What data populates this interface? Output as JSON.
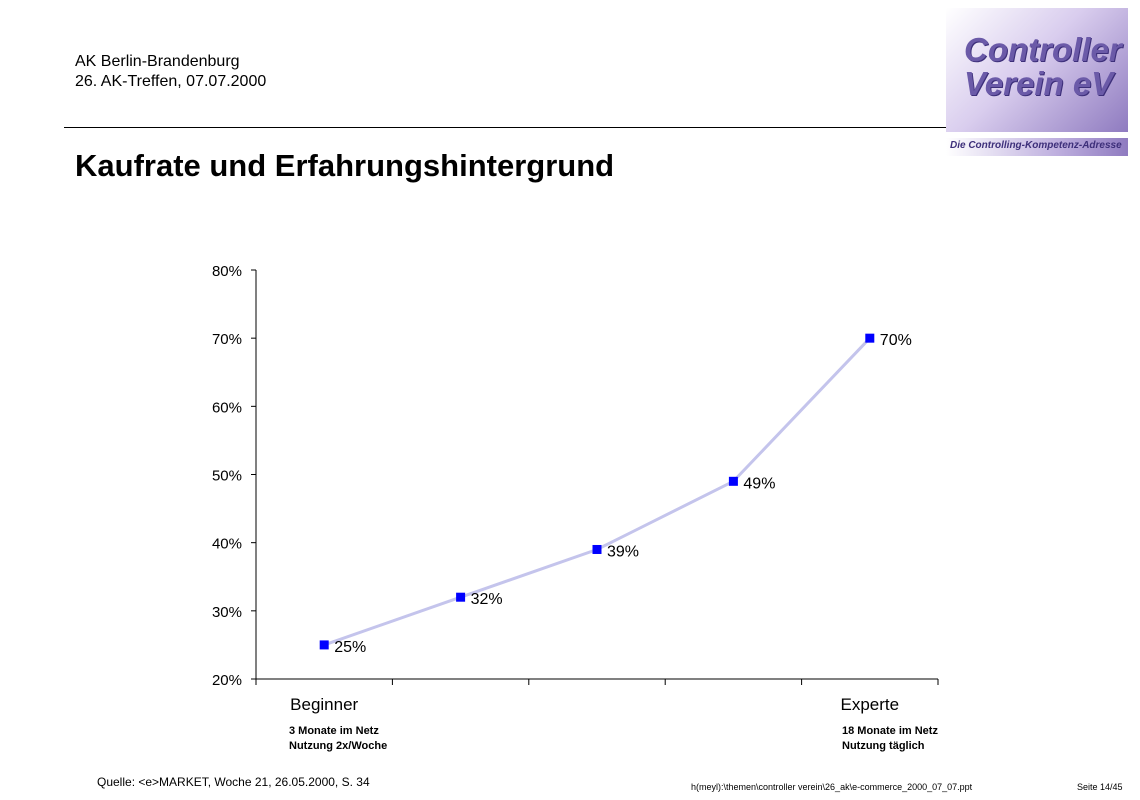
{
  "header": {
    "line1": "AK Berlin-Brandenburg",
    "line2": "26. AK-Treffen, 07.07.2000"
  },
  "title": "Kaufrate und Erfahrungshintergrund",
  "logo": {
    "line1": "Controller",
    "line2": "Verein eV",
    "tagline": "Die Controlling-Kompetenz-Adresse",
    "color": "#6b5aa8"
  },
  "chart_data": {
    "type": "line",
    "title": "",
    "xlabel": "",
    "ylabel": "",
    "categories": [
      "Beginner",
      "",
      "",
      "",
      "Experte"
    ],
    "series": [
      {
        "values": [
          25,
          32,
          39,
          49,
          70
        ],
        "labels": [
          "25%",
          "32%",
          "39%",
          "49%",
          "70%"
        ]
      }
    ],
    "ylim": [
      20,
      80
    ],
    "yticks": [
      "20%",
      "30%",
      "40%",
      "50%",
      "60%",
      "70%",
      "80%"
    ],
    "grid": false,
    "line_color": "#c4c4ec",
    "marker_color": "#0000ff"
  },
  "annotations": {
    "left_line1": "3 Monate im Netz",
    "left_line2": "Nutzung 2x/Woche",
    "right_line1": "18 Monate im Netz",
    "right_line2": "Nutzung täglich"
  },
  "footer": {
    "source": "Quelle: <e>MARKET, Woche 21, 26.05.2000, S. 34",
    "path": "h(meyl):\\themen\\controller verein\\26_ak\\e-commerce_2000_07_07.ppt",
    "page": "Seite 14/45"
  }
}
